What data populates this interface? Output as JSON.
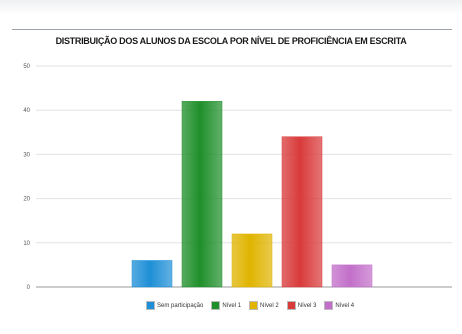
{
  "chart_data": {
    "type": "bar",
    "title": "DISTRIBUIÇÃO DOS ALUNOS DA ESCOLA POR NÍVEL DE PROFICIÊNCIA EM ESCRITA",
    "xlabel": "",
    "ylabel": "",
    "ylim": [
      0,
      50
    ],
    "y_ticks": [
      "0",
      "10",
      "20",
      "30",
      "40",
      "50"
    ],
    "grid": true,
    "legend_position": "bottom",
    "categories": [
      "Sem participação",
      "Nível 1",
      "Nível 2",
      "Nível 3",
      "Nível 4"
    ],
    "values": [
      6,
      42,
      12,
      34,
      5
    ],
    "colors": [
      "#1e8fd6",
      "#1f8f2a",
      "#e0b400",
      "#d93a3a",
      "#c26fc9"
    ]
  }
}
